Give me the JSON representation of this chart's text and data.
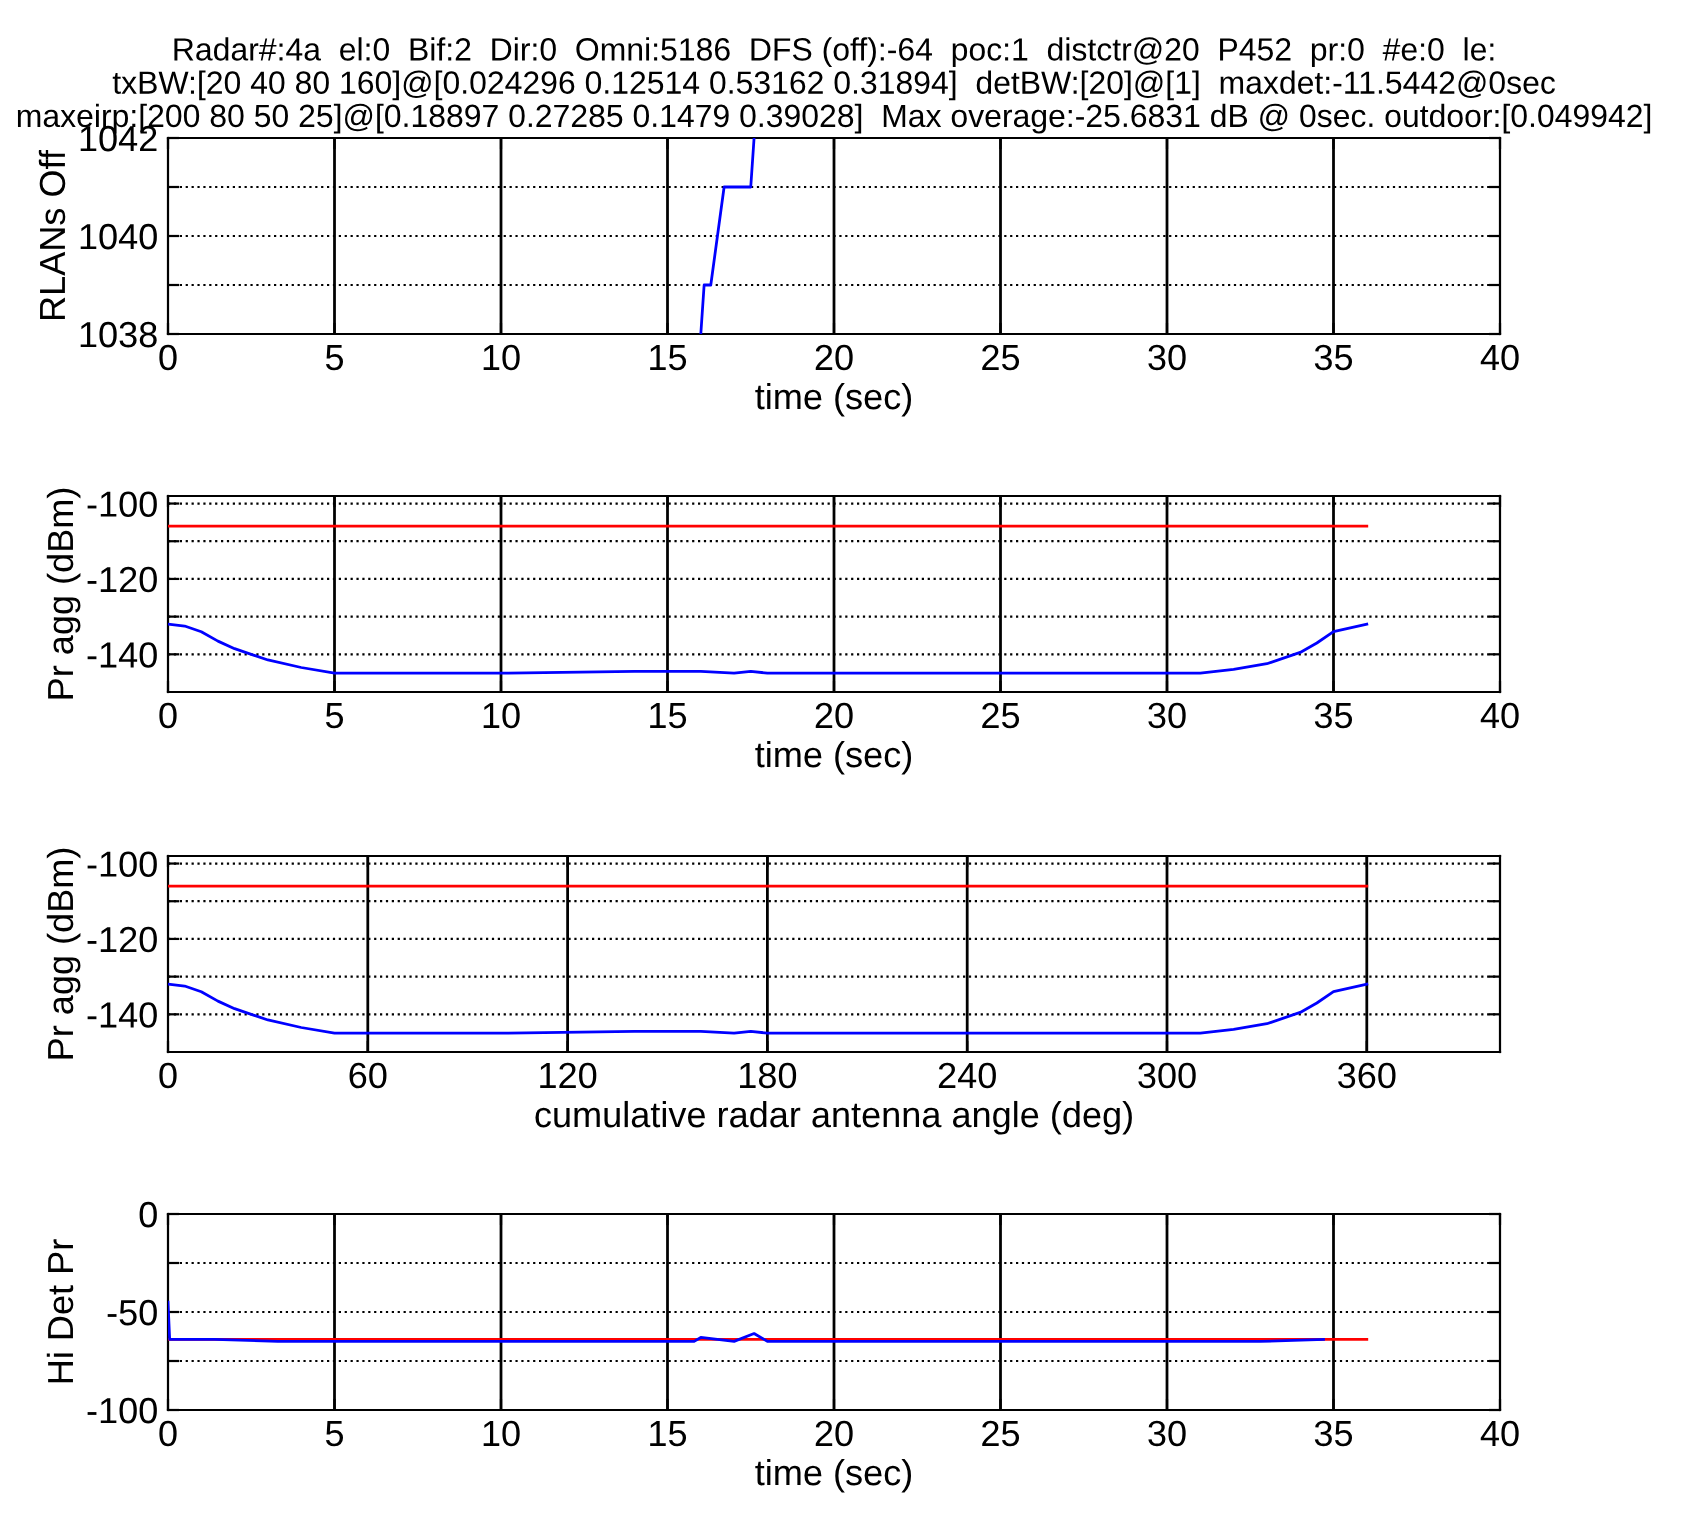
{
  "chart_data": [
    {
      "type": "line",
      "title": "Radar#:4a  el:0  Bif:2  Dir:0  Omni:5186  DFS (off):-64  poc:1  distctr@20  P452  pr:0  #e:0  le:\ntxBW:[20 40 80 160]@[0.024296 0.12514 0.53162 0.31894]  detBW:[20]@[1]  maxdet:-11.5442@0sec\nmaxeirp:[200 80 50 25]@[0.18897 0.27285 0.1479 0.39028]  Max overage:-25.6831 dB @ 0sec. outdoor:[0.049942]",
      "xlabel": "time (sec)",
      "ylabel": "RLANs Off",
      "xlim": [
        0,
        40
      ],
      "ylim": [
        1038,
        1042
      ],
      "xticks": [
        0,
        5,
        10,
        15,
        20,
        25,
        30,
        35,
        40
      ],
      "yticks": [
        1038,
        {
          "value": 1039,
          "label": null
        },
        1040,
        {
          "value": 1041,
          "label": null
        },
        1042
      ],
      "grid": "y",
      "line_style": "solid",
      "series": [
        {
          "color": "#0000ff",
          "x": [
            16.0,
            16.1,
            16.3,
            16.7,
            17.5,
            17.6
          ],
          "values": [
            1038,
            1039,
            1039,
            1041,
            1041,
            1042
          ]
        }
      ],
      "ref_lines": [
        {
          "axis": "x",
          "value": 5,
          "color": "#000000"
        },
        {
          "axis": "x",
          "value": 10,
          "color": "#000000"
        },
        {
          "axis": "x",
          "value": 15,
          "color": "#000000"
        },
        {
          "axis": "x",
          "value": 20,
          "color": "#000000"
        },
        {
          "axis": "x",
          "value": 25,
          "color": "#000000"
        },
        {
          "axis": "x",
          "value": 30,
          "color": "#000000"
        },
        {
          "axis": "x",
          "value": 35,
          "color": "#000000"
        }
      ]
    },
    {
      "type": "line",
      "xlabel": "time (sec)",
      "ylabel": "Pr agg (dBm)",
      "xlim": [
        0,
        40
      ],
      "ylim": [
        -150,
        -98
      ],
      "xticks": [
        0,
        5,
        10,
        15,
        20,
        25,
        30,
        35,
        40
      ],
      "yticks": [
        -140,
        {
          "value": -130,
          "label": null
        },
        -120,
        {
          "value": -110,
          "label": null
        },
        -100
      ],
      "grid": "y",
      "line_style": "solid",
      "series": [
        {
          "color": "#ff0000",
          "x": [
            0,
            36
          ],
          "values": [
            -106,
            -106
          ]
        },
        {
          "color": "#0000ff",
          "x": [
            0,
            0.5,
            1,
            1.5,
            2,
            3,
            4,
            5,
            10,
            14,
            16,
            17,
            17.5,
            18,
            30,
            31,
            32,
            33,
            34,
            34.5,
            35,
            36
          ],
          "values": [
            -132,
            -132.5,
            -134,
            -136.5,
            -138.5,
            -141.5,
            -143.5,
            -145,
            -145,
            -144.5,
            -144.5,
            -145,
            -144.5,
            -145,
            -145,
            -145,
            -144,
            -142.5,
            -139.5,
            -137,
            -134,
            -132
          ]
        }
      ],
      "ref_lines": [
        {
          "axis": "x",
          "value": 5,
          "color": "#000000"
        },
        {
          "axis": "x",
          "value": 10,
          "color": "#000000"
        },
        {
          "axis": "x",
          "value": 15,
          "color": "#000000"
        },
        {
          "axis": "x",
          "value": 20,
          "color": "#000000"
        },
        {
          "axis": "x",
          "value": 25,
          "color": "#000000"
        },
        {
          "axis": "x",
          "value": 30,
          "color": "#000000"
        },
        {
          "axis": "x",
          "value": 35,
          "color": "#000000"
        }
      ]
    },
    {
      "type": "line",
      "xlabel": "cumulative radar antenna angle (deg)",
      "ylabel": "Pr agg (dBm)",
      "xlim": [
        0,
        400
      ],
      "ylim": [
        -150,
        -98
      ],
      "xticks": [
        0,
        60,
        120,
        180,
        240,
        300,
        360
      ],
      "yticks": [
        -140,
        {
          "value": -130,
          "label": null
        },
        -120,
        {
          "value": -110,
          "label": null
        },
        -100
      ],
      "grid": "y",
      "line_style": "solid",
      "series": [
        {
          "color": "#ff0000",
          "x": [
            0,
            360
          ],
          "values": [
            -106,
            -106
          ]
        },
        {
          "color": "#0000ff",
          "x": [
            0,
            5,
            10,
            15,
            20,
            30,
            40,
            50,
            100,
            140,
            160,
            170,
            175,
            180,
            300,
            310,
            320,
            330,
            340,
            345,
            350,
            360
          ],
          "values": [
            -132,
            -132.5,
            -134,
            -136.5,
            -138.5,
            -141.5,
            -143.5,
            -145,
            -145,
            -144.5,
            -144.5,
            -145,
            -144.5,
            -145,
            -145,
            -145,
            -144,
            -142.5,
            -139.5,
            -137,
            -134,
            -132
          ]
        }
      ],
      "ref_lines": [
        {
          "axis": "x",
          "value": 60,
          "color": "#000000"
        },
        {
          "axis": "x",
          "value": 120,
          "color": "#000000"
        },
        {
          "axis": "x",
          "value": 180,
          "color": "#000000"
        },
        {
          "axis": "x",
          "value": 240,
          "color": "#000000"
        },
        {
          "axis": "x",
          "value": 300,
          "color": "#000000"
        },
        {
          "axis": "x",
          "value": 360,
          "color": "#000000"
        }
      ]
    },
    {
      "type": "line",
      "xlabel": "time (sec)",
      "ylabel": "Hi Det Pr",
      "xlim": [
        0,
        40
      ],
      "ylim": [
        -100,
        0
      ],
      "xticks": [
        0,
        5,
        10,
        15,
        20,
        25,
        30,
        35,
        40
      ],
      "yticks": [
        -100,
        {
          "value": -75,
          "label": null
        },
        -50,
        {
          "value": -25,
          "label": null
        },
        0
      ],
      "grid": "y",
      "line_style": "solid",
      "series": [
        {
          "color": "#ff0000",
          "x": [
            0,
            36
          ],
          "values": [
            -64,
            -64
          ]
        },
        {
          "color": "#0000ff",
          "x": [
            0,
            0.05,
            1.4,
            3.3,
            15.8,
            16,
            16.5,
            17,
            17.6,
            18,
            32.8,
            34.7
          ],
          "values": [
            -45,
            -64,
            -64,
            -65,
            -65,
            -63,
            -64,
            -65,
            -61,
            -65,
            -65,
            -64
          ]
        }
      ],
      "ref_lines": [
        {
          "axis": "x",
          "value": 5,
          "color": "#000000"
        },
        {
          "axis": "x",
          "value": 10,
          "color": "#000000"
        },
        {
          "axis": "x",
          "value": 15,
          "color": "#000000"
        },
        {
          "axis": "x",
          "value": 20,
          "color": "#000000"
        },
        {
          "axis": "x",
          "value": 25,
          "color": "#000000"
        },
        {
          "axis": "x",
          "value": 30,
          "color": "#000000"
        },
        {
          "axis": "x",
          "value": 35,
          "color": "#000000"
        }
      ]
    }
  ]
}
